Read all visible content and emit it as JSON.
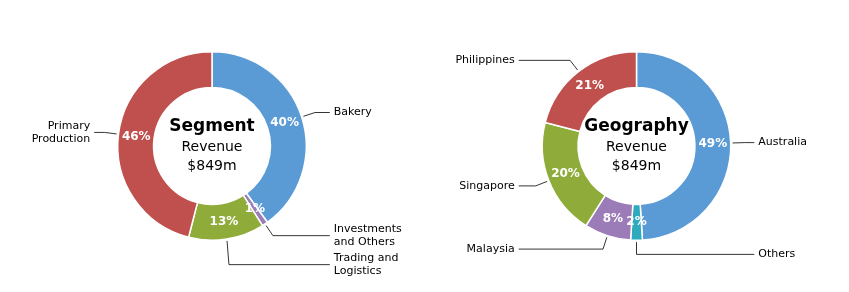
{
  "chart_data": [
    {
      "type": "doughnut",
      "annotations": [
        "Segment",
        "Revenue",
        "$849m"
      ],
      "categories": [
        "Bakery",
        "Investments\nand Others",
        "Trading and\nLogistics",
        "Primary\nProduction"
      ],
      "values": [
        40,
        1,
        13,
        46
      ],
      "value_labels": [
        "40%",
        "1%",
        "13%",
        "46%"
      ],
      "colors": [
        "#5b9bd5",
        "#9b7bb8",
        "#8fac3a",
        "#c0504d"
      ],
      "data_labels": true
    },
    {
      "type": "doughnut",
      "annotations": [
        "Geography",
        "Revenue",
        "$849m"
      ],
      "categories": [
        "Australia",
        "Others",
        "Malaysia",
        "Singapore",
        "Philippines"
      ],
      "values": [
        49,
        2,
        8,
        20,
        21
      ],
      "value_labels": [
        "49%",
        "2%",
        "8%",
        "20%",
        "21%"
      ],
      "colors": [
        "#5b9bd5",
        "#2faabc",
        "#9b7bb8",
        "#8fac3a",
        "#c0504d"
      ],
      "data_labels": true
    }
  ]
}
